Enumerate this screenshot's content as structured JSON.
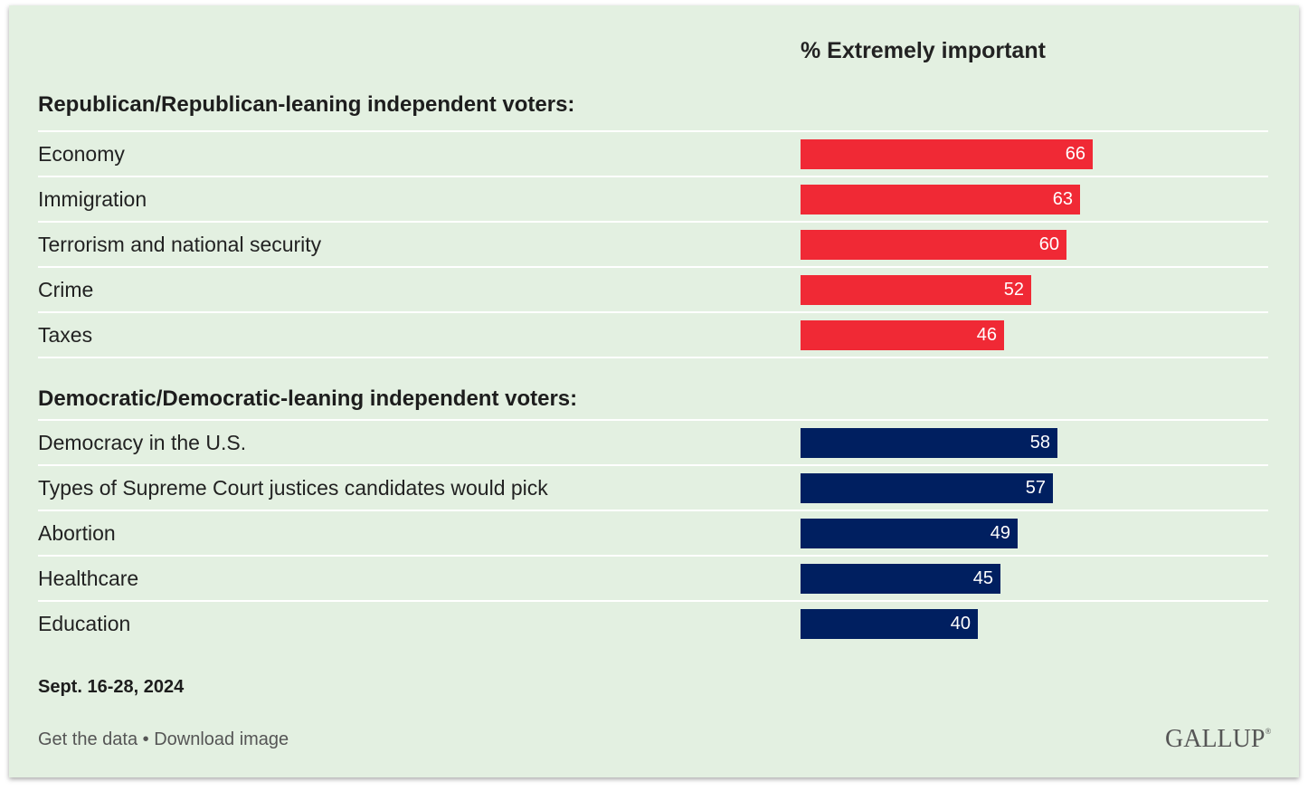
{
  "column_title": "% Extremely important",
  "groups": [
    {
      "title": "Republican/Republican-leaning independent voters:"
    },
    {
      "title": "Democratic/Democratic-leaning independent voters:"
    }
  ],
  "footer": {
    "date": "Sept. 16-28, 2024",
    "get_data": "Get the data",
    "separator": " • ",
    "download": "Download image",
    "logo": "GALLUP"
  },
  "colors": {
    "republican": "#f02935",
    "democratic": "#001f60",
    "background": "#e3f0e1"
  },
  "chart_data": {
    "type": "bar",
    "orientation": "horizontal",
    "title": "% Extremely important",
    "xlim": [
      0,
      100
    ],
    "grid": false,
    "series": [
      {
        "name": "Republican/Republican-leaning independent voters:",
        "color": "#f02935",
        "categories": [
          "Economy",
          "Immigration",
          "Terrorism and national security",
          "Crime",
          "Taxes"
        ],
        "values": [
          66,
          63,
          60,
          52,
          46
        ]
      },
      {
        "name": "Democratic/Democratic-leaning independent voters:",
        "color": "#001f60",
        "categories": [
          "Democracy in the U.S.",
          "Types of Supreme Court justices candidates would pick",
          "Abortion",
          "Healthcare",
          "Education"
        ],
        "values": [
          58,
          57,
          49,
          45,
          40
        ]
      }
    ]
  }
}
